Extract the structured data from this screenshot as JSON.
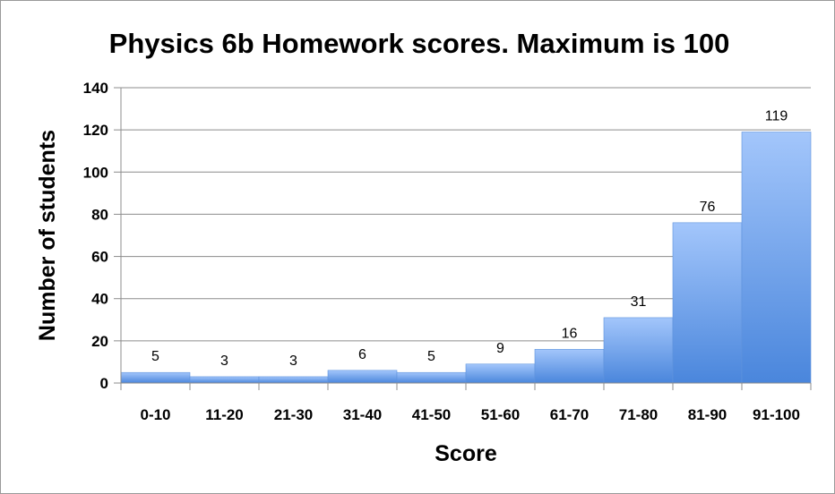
{
  "chart_data": {
    "type": "bar",
    "title": "Physics 6b Homework scores.  Maximum is 100",
    "xlabel": "Score",
    "ylabel": "Number of students",
    "categories": [
      "0-10",
      "11-20",
      "21-30",
      "31-40",
      "41-50",
      "51-60",
      "61-70",
      "71-80",
      "81-90",
      "91-100"
    ],
    "values": [
      5,
      3,
      3,
      6,
      5,
      9,
      16,
      31,
      76,
      119
    ],
    "ylim": [
      0,
      140
    ],
    "yticks": [
      0,
      20,
      40,
      60,
      80,
      100,
      120,
      140
    ],
    "grid": true,
    "legend": "none",
    "data_labels": true,
    "colors": {
      "bar_top": "#a3c6fb",
      "bar_bottom": "#4a86dc",
      "bar_edge": "#5f93dd",
      "grid": "#8c8c8c",
      "axis": "#8c8c8c"
    }
  }
}
